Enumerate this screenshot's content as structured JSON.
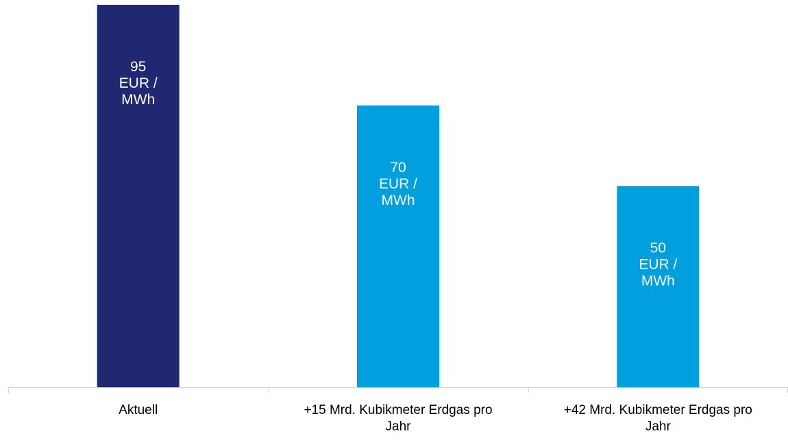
{
  "chart_data": {
    "type": "bar",
    "categories": [
      [
        "Aktuell"
      ],
      [
        "+15 Mrd. Kubikmeter Erdgas pro",
        "Jahr"
      ],
      [
        "+42 Mrd. Kubikmeter Erdgas pro",
        "Jahr"
      ]
    ],
    "values": [
      95,
      70,
      50
    ],
    "data_labels": [
      [
        "95",
        "EUR /",
        "MWh"
      ],
      [
        "70",
        "EUR /",
        "MWh"
      ],
      [
        "50",
        "EUR /",
        "MWh"
      ]
    ],
    "unit": "EUR / MWh",
    "colors": [
      "#1f2870",
      "#00a0df",
      "#00a0df"
    ],
    "label_color": "#ffffff",
    "axis_color": "#d0d0d0",
    "ylim": [
      0,
      95
    ],
    "grid": false,
    "legend": "none"
  }
}
